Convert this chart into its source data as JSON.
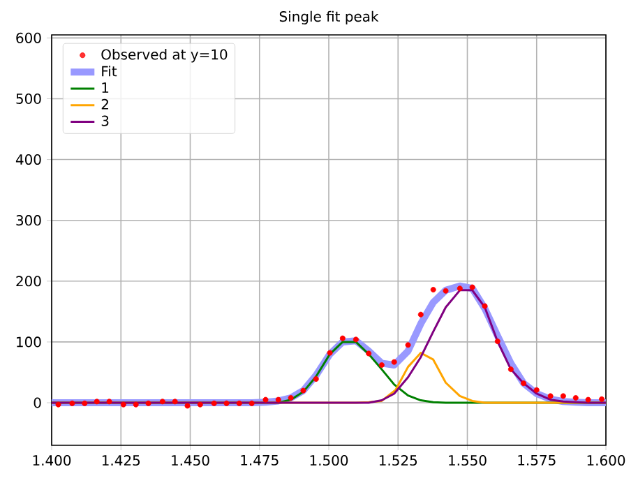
{
  "chart_data": {
    "type": "line",
    "title": "Single fit peak",
    "xlim": [
      1.4,
      1.6
    ],
    "ylim": [
      -70,
      605
    ],
    "xticks": [
      {
        "value": 1.4,
        "label": "1.400"
      },
      {
        "value": 1.425,
        "label": "1.425"
      },
      {
        "value": 1.45,
        "label": "1.450"
      },
      {
        "value": 1.475,
        "label": "1.475"
      },
      {
        "value": 1.5,
        "label": "1.500"
      },
      {
        "value": 1.525,
        "label": "1.525"
      },
      {
        "value": 1.55,
        "label": "1.550"
      },
      {
        "value": 1.575,
        "label": "1.575"
      },
      {
        "value": 1.6,
        "label": "1.600"
      }
    ],
    "yticks": [
      0,
      100,
      200,
      300,
      400,
      500,
      600
    ],
    "grid": true,
    "legend": "top left",
    "marker": "none",
    "line_style": "solid",
    "series": [
      {
        "name": "Observed at y=10",
        "type": "scatter",
        "marker": "circle",
        "color": "#ff0000",
        "x": [
          1.4024,
          1.4074,
          1.4119,
          1.4163,
          1.4208,
          1.4259,
          1.4304,
          1.4349,
          1.44,
          1.4445,
          1.449,
          1.4536,
          1.4586,
          1.4631,
          1.4677,
          1.4722,
          1.4772,
          1.4818,
          1.4863,
          1.4908,
          1.4954,
          1.5004,
          1.505,
          1.5098,
          1.5144,
          1.5191,
          1.5236,
          1.5286,
          1.5332,
          1.5377,
          1.5422,
          1.5473,
          1.5518,
          1.5563,
          1.5609,
          1.5657,
          1.5703,
          1.575,
          1.58,
          1.5846,
          1.5891,
          1.5936,
          1.5985
        ],
        "values": [
          -3,
          -1,
          -1,
          2,
          2,
          -3,
          -3,
          -1,
          2,
          2,
          -5,
          -3,
          -1,
          -1,
          -1,
          -1,
          5,
          5,
          8,
          20,
          39,
          82,
          106,
          104,
          81,
          62,
          67,
          95,
          145,
          186,
          184,
          188,
          190,
          159,
          101,
          55,
          32,
          21,
          11,
          11,
          8,
          5,
          6
        ]
      },
      {
        "name": "Fit",
        "color": "#9999ff",
        "x": [
          1.4,
          1.4722,
          1.4772,
          1.4818,
          1.4863,
          1.4908,
          1.4954,
          1.5004,
          1.505,
          1.5098,
          1.5144,
          1.5191,
          1.5236,
          1.5286,
          1.5332,
          1.5377,
          1.5422,
          1.5473,
          1.5518,
          1.5563,
          1.5609,
          1.5657,
          1.5703,
          1.575,
          1.58,
          1.5846,
          1.5891,
          1.5936,
          1.6
        ],
        "values": [
          0,
          0,
          1,
          3,
          8,
          20,
          45,
          80,
          100,
          102,
          85,
          65,
          62,
          85,
          130,
          165,
          185,
          192,
          188,
          155,
          110,
          65,
          32,
          15,
          6,
          2,
          1,
          0,
          0
        ]
      },
      {
        "name": "1",
        "color": "#008000",
        "x": [
          1.4,
          1.4818,
          1.4863,
          1.4908,
          1.4954,
          1.5004,
          1.505,
          1.5098,
          1.5144,
          1.5191,
          1.5236,
          1.5286,
          1.5332,
          1.5377,
          1.5422,
          1.6
        ],
        "values": [
          0,
          0,
          5,
          18,
          43,
          80,
          100,
          100,
          80,
          55,
          30,
          12,
          4,
          1,
          0,
          0
        ]
      },
      {
        "name": "2",
        "color": "#ffa500",
        "x": [
          1.4,
          1.5098,
          1.5144,
          1.5191,
          1.5241,
          1.5286,
          1.5332,
          1.5377,
          1.5422,
          1.5473,
          1.5518,
          1.5563,
          1.6
        ],
        "values": [
          0,
          0,
          1,
          3,
          21,
          59,
          82,
          71,
          33,
          11,
          3,
          0,
          0
        ]
      },
      {
        "name": "3",
        "color": "#800080",
        "x": [
          1.4,
          1.5144,
          1.5191,
          1.5236,
          1.5286,
          1.5332,
          1.5377,
          1.5422,
          1.5473,
          1.5518,
          1.5563,
          1.5609,
          1.5657,
          1.5703,
          1.575,
          1.58,
          1.5846,
          1.5891,
          1.5936,
          1.6
        ],
        "values": [
          0,
          0,
          4,
          15,
          42,
          75,
          117,
          157,
          185,
          185,
          157,
          101,
          55,
          32,
          15,
          5,
          2,
          1,
          0,
          0
        ]
      }
    ]
  }
}
